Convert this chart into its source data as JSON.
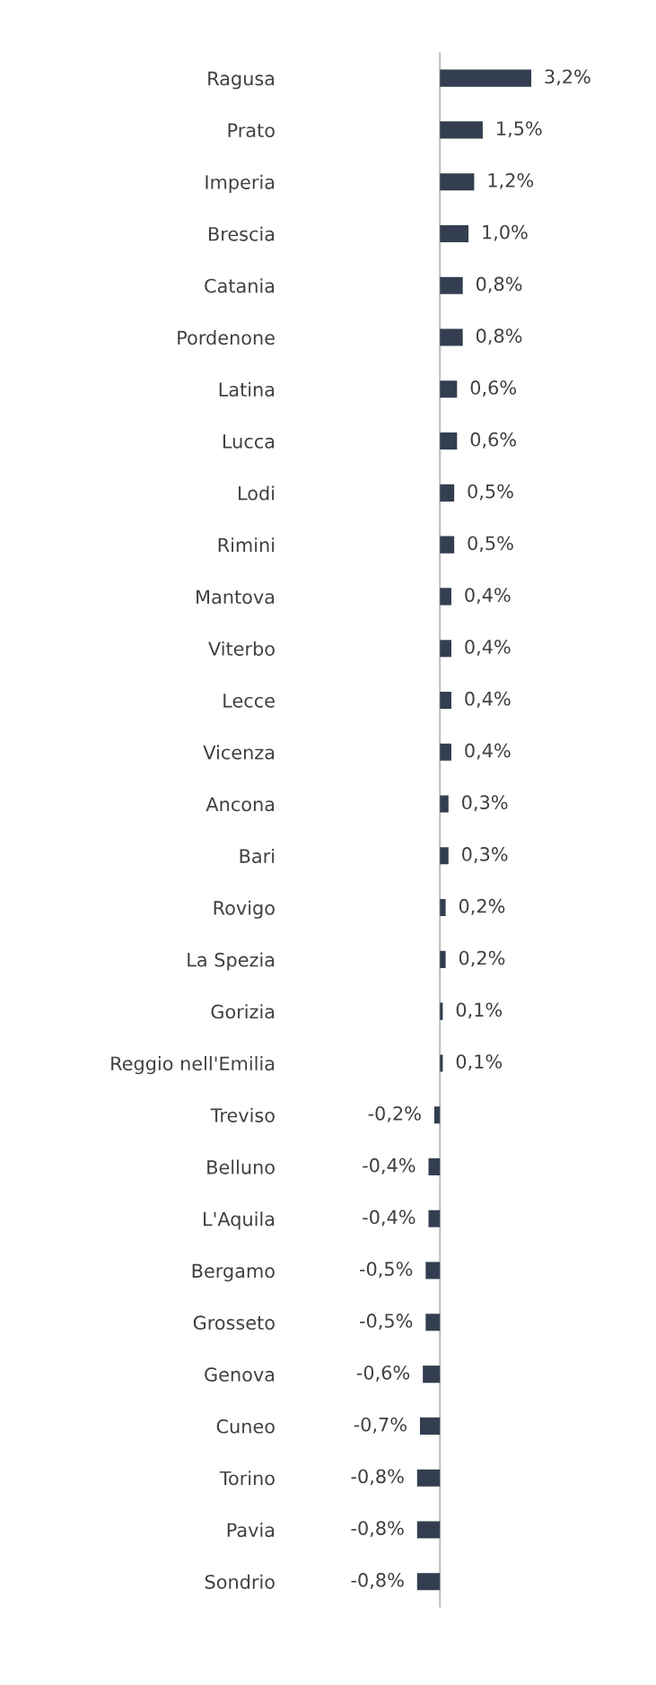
{
  "chart_data": {
    "type": "bar",
    "orientation": "horizontal",
    "color": "#333f50",
    "categories": [
      "Ragusa",
      "Prato",
      "Imperia",
      "Brescia",
      "Catania",
      "Pordenone",
      "Latina",
      "Lucca",
      "Lodi",
      "Rimini",
      "Mantova",
      "Viterbo",
      "Lecce",
      "Vicenza",
      "Ancona",
      "Bari",
      "Rovigo",
      "La Spezia",
      "Gorizia",
      "Reggio nell'Emilia",
      "Treviso",
      "Belluno",
      "L'Aquila",
      "Bergamo",
      "Grosseto",
      "Genova",
      "Cuneo",
      "Torino",
      "Pavia",
      "Sondrio"
    ],
    "values": [
      3.2,
      1.5,
      1.2,
      1.0,
      0.8,
      0.8,
      0.6,
      0.6,
      0.5,
      0.5,
      0.4,
      0.4,
      0.4,
      0.4,
      0.3,
      0.3,
      0.2,
      0.2,
      0.1,
      0.1,
      -0.2,
      -0.4,
      -0.4,
      -0.5,
      -0.5,
      -0.6,
      -0.7,
      -0.8,
      -0.8,
      -0.8
    ],
    "value_labels": [
      "3,2%",
      "1,5%",
      "1,2%",
      "1,0%",
      "0,8%",
      "0,8%",
      "0,6%",
      "0,6%",
      "0,5%",
      "0,5%",
      "0,4%",
      "0,4%",
      "0,4%",
      "0,4%",
      "0,3%",
      "0,3%",
      "0,2%",
      "0,2%",
      "0,1%",
      "0,1%",
      "-0,2%",
      "-0,4%",
      "-0,4%",
      "-0,5%",
      "-0,5%",
      "-0,6%",
      "-0,7%",
      "-0,8%",
      "-0,8%",
      "-0,8%"
    ],
    "grid": false,
    "legend": false
  }
}
